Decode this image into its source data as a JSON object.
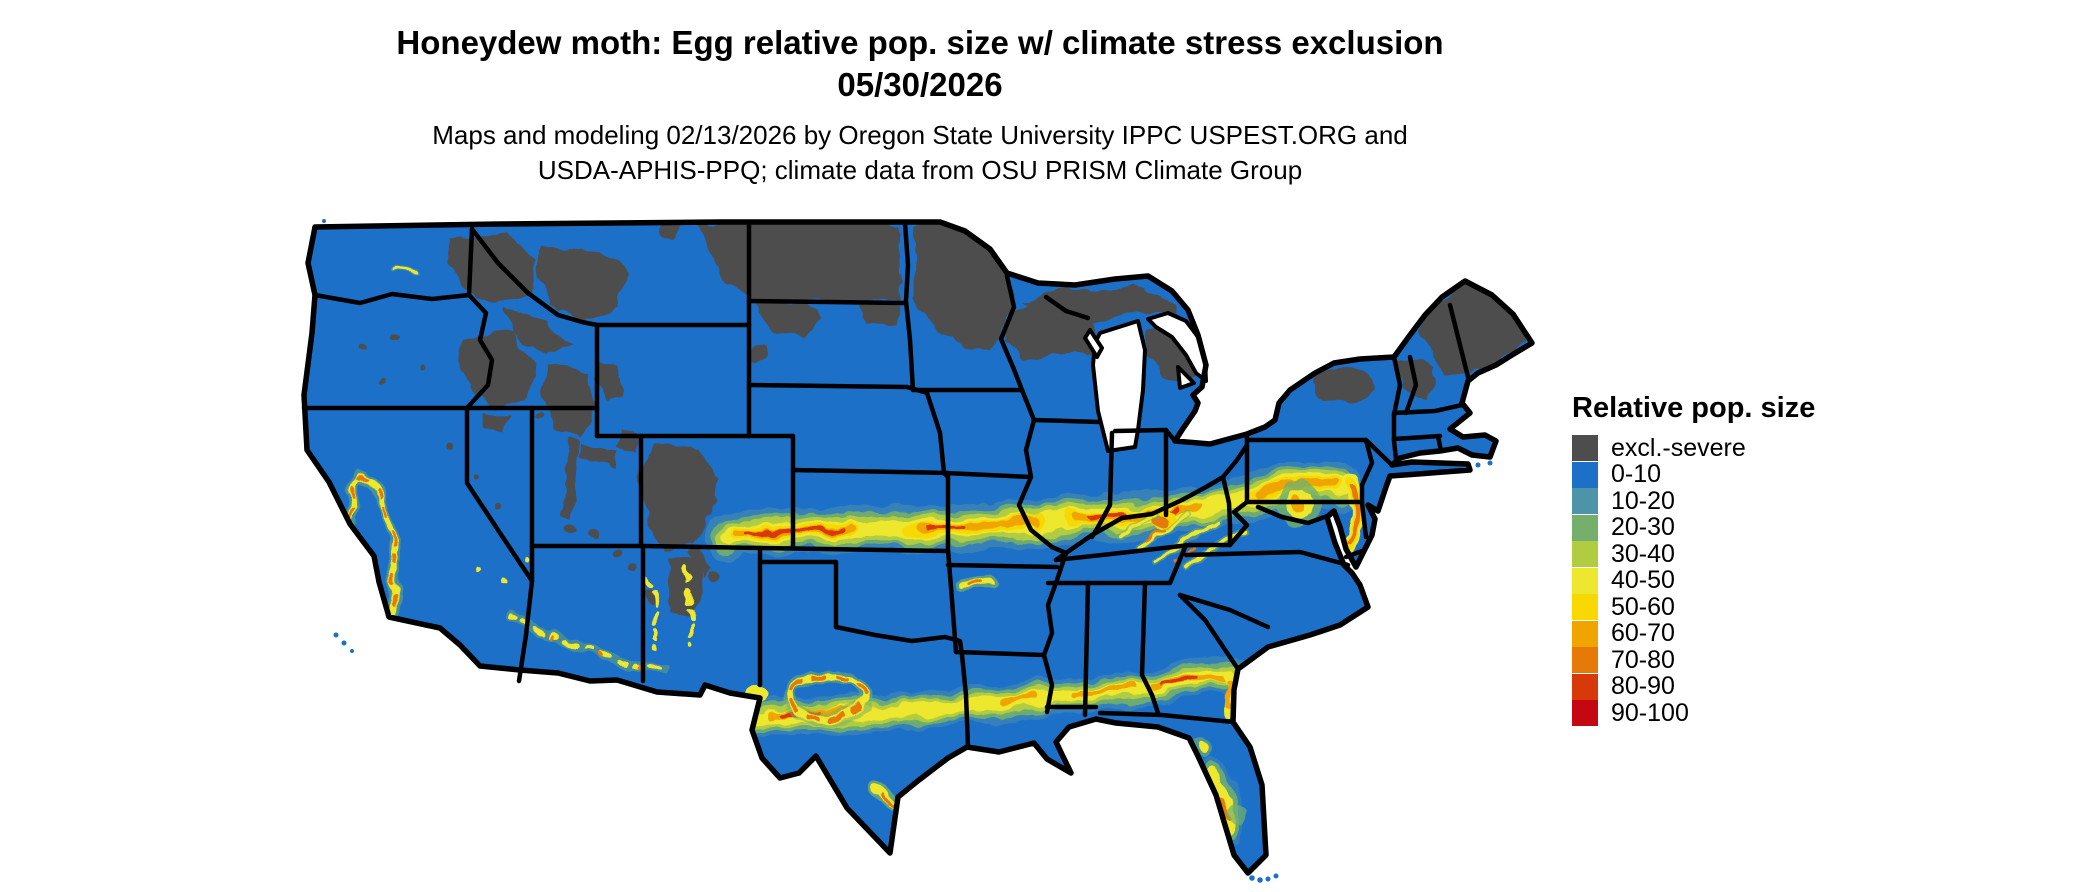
{
  "header": {
    "title": "Honeydew moth: Egg relative pop. size w/ climate stress exclusion",
    "date": "05/30/2026",
    "subtitle_line1": "Maps and modeling 02/13/2026 by Oregon State University IPPC USPEST.ORG and",
    "subtitle_line2": "USDA-APHIS-PPQ; climate data from OSU PRISM Climate Group"
  },
  "legend": {
    "title": "Relative pop. size",
    "items": [
      {
        "label": "excl.-severe",
        "color": "#4D4D4D"
      },
      {
        "label": "0-10",
        "color": "#1D70C8"
      },
      {
        "label": "10-20",
        "color": "#4E94A8"
      },
      {
        "label": "20-30",
        "color": "#74B06C"
      },
      {
        "label": "30-40",
        "color": "#B1CC40"
      },
      {
        "label": "40-50",
        "color": "#EDE72F"
      },
      {
        "label": "50-60",
        "color": "#F7D800"
      },
      {
        "label": "60-70",
        "color": "#EFA400"
      },
      {
        "label": "70-80",
        "color": "#E67907"
      },
      {
        "label": "80-90",
        "color": "#D8390B"
      },
      {
        "label": "90-100",
        "color": "#C50711"
      }
    ]
  },
  "map": {
    "region": "Contiguous United States",
    "base_color": "#1D70C8",
    "excluded_color": "#4D4D4D",
    "border_color": "#000000",
    "water_color": "#FFFFFF"
  }
}
